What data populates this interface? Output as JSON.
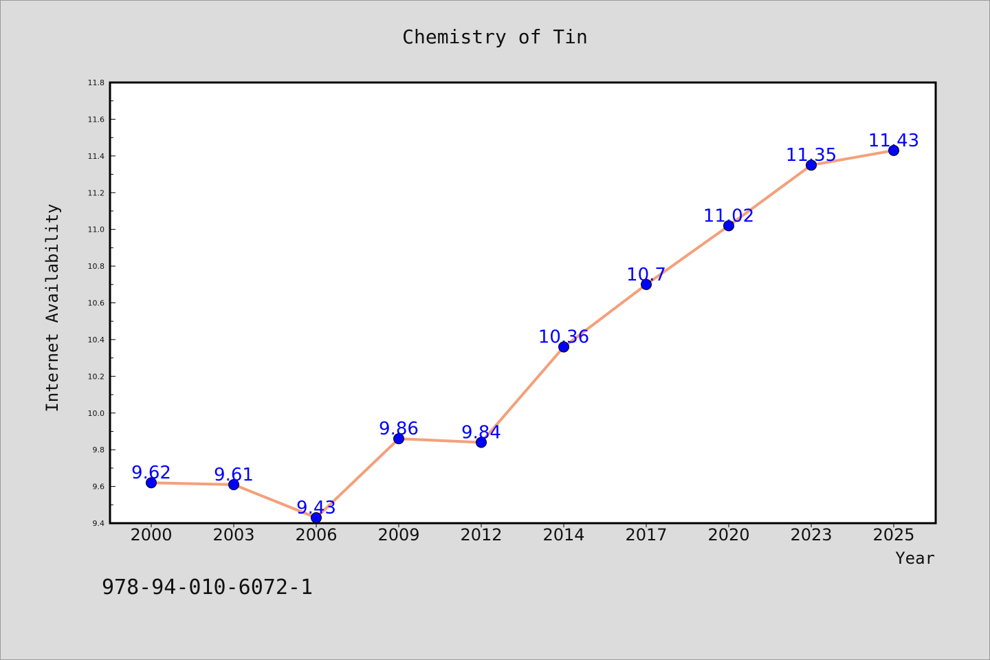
{
  "chart_data": {
    "type": "line",
    "title": "Chemistry of Tin",
    "xlabel": "Year",
    "ylabel": "Internet Availability",
    "categories": [
      "2000",
      "2003",
      "2006",
      "2009",
      "2012",
      "2014",
      "2017",
      "2020",
      "2023",
      "2025"
    ],
    "series": [
      {
        "values": [
          9.62,
          9.61,
          9.43,
          9.86,
          9.84,
          10.36,
          10.7,
          11.02,
          11.35,
          11.43
        ],
        "line_color": "#f4a07a",
        "marker_color": "#0000ff",
        "label_color": "#0000ff"
      }
    ],
    "ylim": [
      9.4,
      11.8
    ],
    "yticks": [
      "9.4",
      "9.6",
      "9.8",
      "10.0",
      "10.2",
      "10.4",
      "10.6",
      "10.8",
      "11.0",
      "11.2",
      "11.4",
      "11.6",
      "11.8"
    ],
    "grid": false,
    "legend": "none"
  },
  "footnote": "978-94-010-6072-1"
}
